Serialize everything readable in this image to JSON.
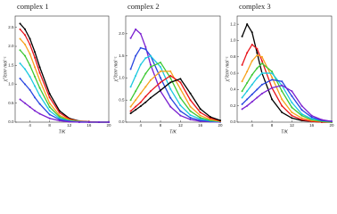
{
  "chart_data": [
    {
      "type": "line",
      "title": "complex 1",
      "x_label": "T/K",
      "y_label": "χ''/cm³ mol⁻¹",
      "x": [
        2,
        3,
        4,
        5,
        6,
        8,
        10,
        12,
        14,
        16,
        18,
        20
      ],
      "xlim": [
        1,
        20
      ],
      "xticks": [
        4,
        8,
        12,
        16,
        20
      ],
      "ylim": [
        0,
        2.8
      ],
      "yticks": [
        {
          "value": 0,
          "label": "0.0"
        },
        {
          "value": 0.5,
          "label": "0.5"
        },
        {
          "value": 1,
          "label": "1.0"
        },
        {
          "value": 1.5,
          "label": "1.5"
        },
        {
          "value": 2,
          "label": "2.0"
        },
        {
          "value": 2.5,
          "label": "2.5"
        }
      ],
      "series": [
        {
          "color": "#000000",
          "values": [
            2.6,
            2.45,
            2.2,
            1.85,
            1.45,
            0.75,
            0.3,
            0.1,
            0.03,
            0.01,
            0,
            0
          ]
        },
        {
          "color": "#e8141b",
          "values": [
            2.45,
            2.3,
            2.05,
            1.7,
            1.3,
            0.65,
            0.25,
            0.08,
            0.02,
            0.01,
            0,
            0
          ]
        },
        {
          "color": "#f7a21b",
          "values": [
            2.2,
            2.05,
            1.8,
            1.45,
            1.1,
            0.5,
            0.18,
            0.06,
            0.02,
            0,
            0,
            0
          ]
        },
        {
          "color": "#3cc832",
          "values": [
            1.9,
            1.75,
            1.5,
            1.2,
            0.9,
            0.4,
            0.14,
            0.04,
            0.01,
            0,
            0,
            0
          ]
        },
        {
          "color": "#1cc9e0",
          "values": [
            1.55,
            1.4,
            1.2,
            0.95,
            0.7,
            0.3,
            0.1,
            0.03,
            0.01,
            0,
            0,
            0
          ]
        },
        {
          "color": "#2846e0",
          "values": [
            1.15,
            1.0,
            0.85,
            0.65,
            0.48,
            0.2,
            0.07,
            0.02,
            0,
            0,
            0,
            0
          ]
        },
        {
          "color": "#7a1fd0",
          "values": [
            0.6,
            0.5,
            0.4,
            0.3,
            0.22,
            0.1,
            0.04,
            0.01,
            0,
            0,
            0,
            0
          ]
        }
      ]
    },
    {
      "type": "line",
      "title": "complex 2",
      "x_label": "T/K",
      "y_label": "χ''/cm³ mol⁻¹",
      "x": [
        2,
        3,
        4,
        5,
        6,
        8,
        10,
        12,
        14,
        16,
        18,
        20
      ],
      "xlim": [
        1,
        20
      ],
      "xticks": [
        4,
        8,
        12,
        16,
        20
      ],
      "ylim": [
        0,
        2.4
      ],
      "yticks": [
        {
          "value": 0,
          "label": "0.0"
        },
        {
          "value": 0.5,
          "label": "0.5"
        },
        {
          "value": 1,
          "label": "1.0"
        },
        {
          "value": 1.5,
          "label": "1.5"
        },
        {
          "value": 2,
          "label": "2.0"
        }
      ],
      "series": [
        {
          "color": "#7a1fd0",
          "values": [
            1.9,
            2.1,
            2.0,
            1.7,
            1.3,
            0.7,
            0.35,
            0.15,
            0.06,
            0.02,
            0.01,
            0
          ]
        },
        {
          "color": "#2846e0",
          "values": [
            1.2,
            1.5,
            1.68,
            1.65,
            1.5,
            1.0,
            0.55,
            0.25,
            0.1,
            0.04,
            0.02,
            0.01
          ]
        },
        {
          "color": "#1cc9e0",
          "values": [
            0.8,
            1.05,
            1.3,
            1.45,
            1.5,
            1.25,
            0.75,
            0.38,
            0.16,
            0.07,
            0.03,
            0.01
          ]
        },
        {
          "color": "#3cc832",
          "values": [
            0.5,
            0.7,
            0.9,
            1.1,
            1.25,
            1.35,
            1.0,
            0.55,
            0.25,
            0.1,
            0.04,
            0.02
          ]
        },
        {
          "color": "#f7a21b",
          "values": [
            0.35,
            0.5,
            0.65,
            0.8,
            0.95,
            1.15,
            1.15,
            0.75,
            0.35,
            0.15,
            0.06,
            0.02
          ]
        },
        {
          "color": "#e8141b",
          "values": [
            0.25,
            0.35,
            0.45,
            0.58,
            0.7,
            0.9,
            1.05,
            0.9,
            0.5,
            0.22,
            0.09,
            0.03
          ]
        },
        {
          "color": "#000000",
          "values": [
            0.2,
            0.28,
            0.36,
            0.45,
            0.55,
            0.72,
            0.9,
            0.98,
            0.65,
            0.3,
            0.12,
            0.04
          ]
        }
      ]
    },
    {
      "type": "line",
      "title": "complex 3",
      "x_label": "T/K",
      "y_label": "χ''/cm³ mol⁻¹",
      "x": [
        2,
        3,
        4,
        5,
        6,
        8,
        10,
        12,
        14,
        16,
        18,
        20
      ],
      "xlim": [
        1,
        20
      ],
      "xticks": [
        4,
        8,
        12,
        16,
        20
      ],
      "ylim": [
        0,
        1.3
      ],
      "yticks": [
        {
          "value": 0,
          "label": "0.0"
        },
        {
          "value": 0.2,
          "label": "0.2"
        },
        {
          "value": 0.4,
          "label": "0.4"
        },
        {
          "value": 0.6,
          "label": "0.6"
        },
        {
          "value": 0.8,
          "label": "0.8"
        },
        {
          "value": 1,
          "label": "1.0"
        },
        {
          "value": 1.2,
          "label": "1.2"
        }
      ],
      "series": [
        {
          "color": "#000000",
          "values": [
            1.05,
            1.2,
            1.1,
            0.85,
            0.6,
            0.28,
            0.12,
            0.05,
            0.02,
            0.01,
            0,
            0
          ]
        },
        {
          "color": "#e8141b",
          "values": [
            0.7,
            0.85,
            0.95,
            0.9,
            0.75,
            0.42,
            0.2,
            0.08,
            0.03,
            0.01,
            0,
            0
          ]
        },
        {
          "color": "#f7a21b",
          "values": [
            0.5,
            0.62,
            0.75,
            0.82,
            0.8,
            0.55,
            0.28,
            0.12,
            0.05,
            0.02,
            0.01,
            0
          ]
        },
        {
          "color": "#3cc832",
          "values": [
            0.38,
            0.48,
            0.58,
            0.66,
            0.72,
            0.62,
            0.38,
            0.18,
            0.08,
            0.03,
            0.01,
            0
          ]
        },
        {
          "color": "#1cc9e0",
          "values": [
            0.3,
            0.38,
            0.46,
            0.54,
            0.6,
            0.6,
            0.45,
            0.24,
            0.1,
            0.04,
            0.02,
            0.01
          ]
        },
        {
          "color": "#2846e0",
          "values": [
            0.22,
            0.28,
            0.34,
            0.4,
            0.46,
            0.52,
            0.5,
            0.32,
            0.15,
            0.06,
            0.02,
            0.01
          ]
        },
        {
          "color": "#7a1fd0",
          "values": [
            0.16,
            0.2,
            0.25,
            0.3,
            0.35,
            0.42,
            0.45,
            0.38,
            0.2,
            0.08,
            0.03,
            0.01
          ]
        }
      ]
    }
  ]
}
